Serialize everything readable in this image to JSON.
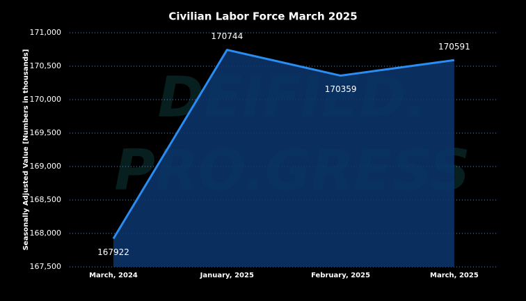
{
  "chart_data": {
    "type": "area",
    "title": "Civilian Labor Force March 2025",
    "y_label": "Seasonally Adjusted Value [Numbers in thousands]",
    "watermark": [
      "DEIFIED.",
      "PRO.GRESS"
    ],
    "categories": [
      "March, 2024",
      "January, 2025",
      "February, 2025",
      "March, 2025"
    ],
    "values": [
      167922,
      170744,
      170359,
      170591
    ],
    "color": "#2b8cf2",
    "fill": "#0b3468",
    "ylim": [
      167500,
      171000
    ],
    "yticks": [
      {
        "value": 167500,
        "label": "167,500"
      },
      {
        "value": 168000,
        "label": "168,000"
      },
      {
        "value": 168500,
        "label": "168,500"
      },
      {
        "value": 169000,
        "label": "169,000"
      },
      {
        "value": 169500,
        "label": "169,500"
      },
      {
        "value": 170000,
        "label": "170,000"
      },
      {
        "value": 170500,
        "label": "170,500"
      },
      {
        "value": 171000,
        "label": "171,000"
      }
    ],
    "grid": true
  }
}
